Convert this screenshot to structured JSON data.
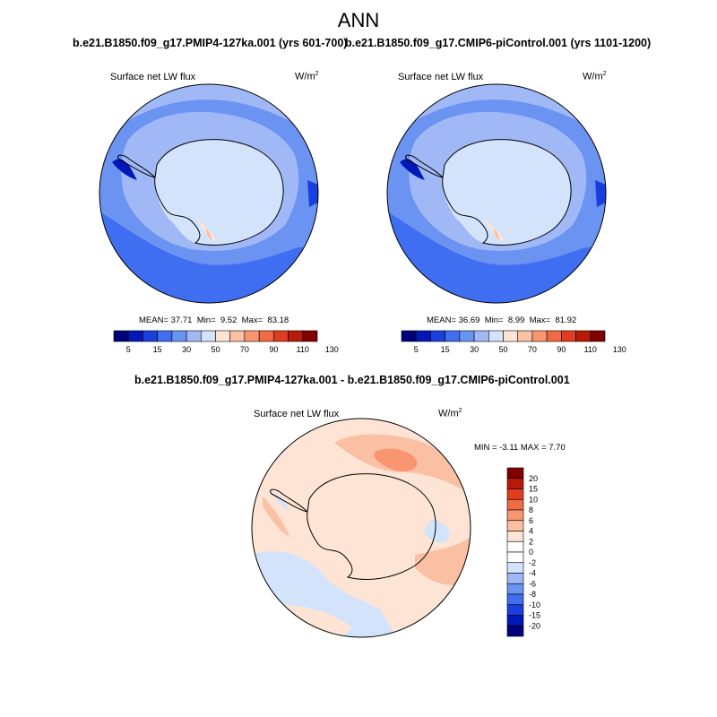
{
  "title": "ANN",
  "panels": [
    {
      "case_title": "b.e21.B1850.f09_g17.PMIP4-127ka.001 (yrs 601-700)",
      "field": "Surface net LW flux",
      "units": "W/m",
      "units_exp": "2",
      "stats": {
        "mean_label": "MEAN=",
        "mean": "37.71",
        "min_label": "Min=",
        "min": "9.52",
        "max_label": "Max=",
        "max": "83.18"
      }
    },
    {
      "case_title": "b.e21.B1850.f09_g17.CMIP6-piControl.001 (yrs 1101-1200)",
      "field": "Surface net LW flux",
      "units": "W/m",
      "units_exp": "2",
      "stats": {
        "mean_label": "MEAN=",
        "mean": "36.69",
        "min_label": "Min=",
        "min": "8.99",
        "max_label": "Max=",
        "max": "81.92"
      }
    }
  ],
  "diff": {
    "title": "b.e21.B1850.f09_g17.PMIP4-127ka.001 - b.e21.B1850.f09_g17.CMIP6-piControl.001",
    "field": "Surface net LW flux",
    "units": "W/m",
    "units_exp": "2",
    "stats": "MIN =  -3.11 MAX =   7.70"
  },
  "colorbar_abs": {
    "ticks": [
      "5",
      "15",
      "30",
      "50",
      "70",
      "90",
      "110",
      "130"
    ],
    "colors": [
      "#00007a",
      "#0018b8",
      "#1a3fe0",
      "#3f6ef0",
      "#6b93f2",
      "#a0b9f6",
      "#d2e3fb",
      "#fde4d4",
      "#fbbfa3",
      "#f79670",
      "#f06a45",
      "#e03c1f",
      "#b81a08",
      "#800000"
    ]
  },
  "colorbar_diff": {
    "ticks": [
      "20",
      "15",
      "10",
      "8",
      "6",
      "4",
      "2",
      "0",
      "-2",
      "-4",
      "-6",
      "-8",
      "-10",
      "-15",
      "-20"
    ],
    "colors": [
      "#800000",
      "#b81a08",
      "#e03c1f",
      "#f06a45",
      "#f79670",
      "#fbbfa3",
      "#fde4d4",
      "#ffffff",
      "#d2e3fb",
      "#a0b9f6",
      "#6b93f2",
      "#3f6ef0",
      "#1a3fe0",
      "#0018b8",
      "#00007a"
    ]
  }
}
